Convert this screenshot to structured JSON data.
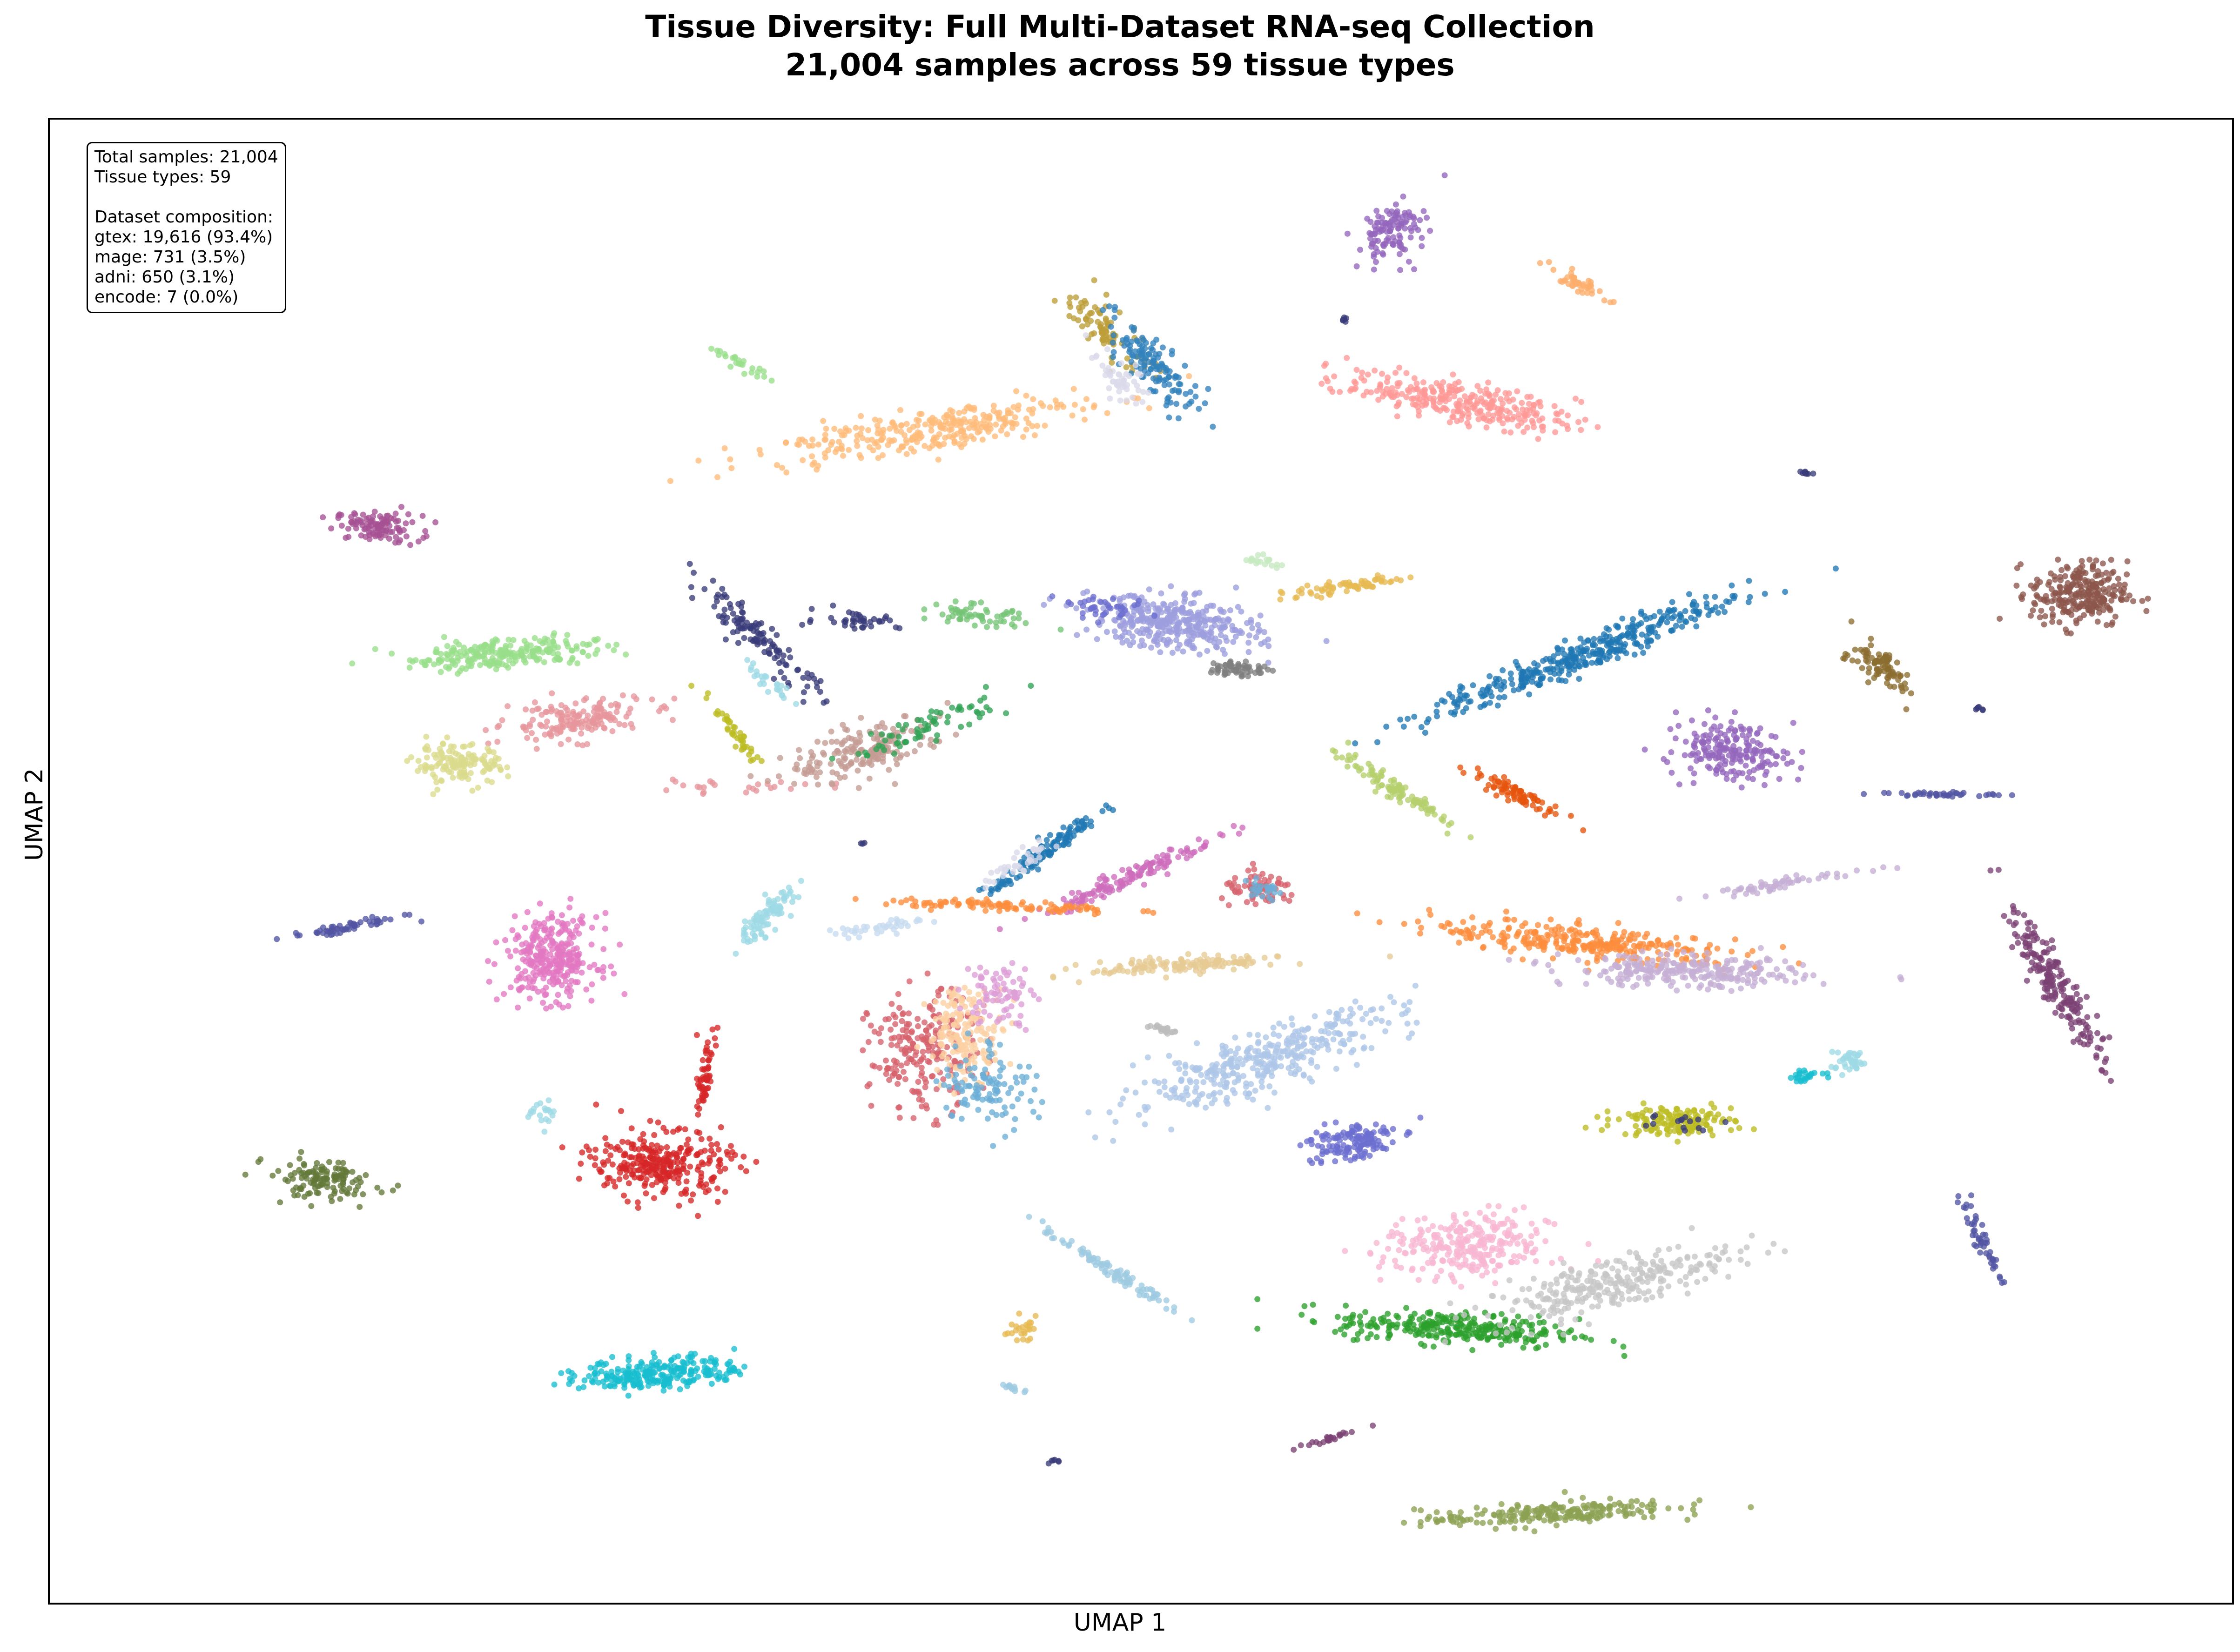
{
  "chart_data": {
    "type": "scatter",
    "title": "Tissue Diversity: Full Multi-Dataset RNA-seq Collection",
    "subtitle": "21,004 samples across 59 tissue types",
    "xlabel": "UMAP 1",
    "ylabel": "UMAP 2",
    "xlim": [
      0,
      100
    ],
    "ylim": [
      0,
      100
    ],
    "grid": false,
    "legend": "none",
    "clusters": [
      {
        "color": "#a55194",
        "x": 15.0,
        "y": 72.5,
        "sx": 1.8,
        "sy": 0.9,
        "rot": -5,
        "n": 110
      },
      {
        "color": "#98df8a",
        "x": 20.8,
        "y": 64.0,
        "sx": 3.9,
        "sy": 0.9,
        "rot": 5,
        "n": 240
      },
      {
        "color": "#e7969c",
        "x": 24.0,
        "y": 59.5,
        "sx": 3.0,
        "sy": 1.2,
        "rot": 10,
        "n": 170
      },
      {
        "color": "#dbdb8d",
        "x": 18.8,
        "y": 56.5,
        "sx": 1.9,
        "sy": 1.2,
        "rot": 0,
        "n": 140
      },
      {
        "color": "#e7969c",
        "x": 31.0,
        "y": 55.0,
        "sx": 4.5,
        "sy": 0.35,
        "rot": 0,
        "n": 25
      },
      {
        "color": "#393b79",
        "x": 32.5,
        "y": 65.0,
        "sx": 4.5,
        "sy": 0.7,
        "rot": -55,
        "n": 120
      },
      {
        "color": "#bcbd22",
        "x": 31.5,
        "y": 58.5,
        "sx": 3.0,
        "sy": 0.3,
        "rot": -62,
        "n": 45
      },
      {
        "color": "#9edae5",
        "x": 33.0,
        "y": 62.0,
        "sx": 2.0,
        "sy": 0.4,
        "rot": -50,
        "n": 25
      },
      {
        "color": "#393b79",
        "x": 37.0,
        "y": 66.3,
        "sx": 1.8,
        "sy": 0.6,
        "rot": 0,
        "n": 40
      },
      {
        "color": "#c49c94",
        "x": 37.5,
        "y": 57.5,
        "sx": 3.4,
        "sy": 1.4,
        "rot": 25,
        "n": 190
      },
      {
        "color": "#31a354",
        "x": 40.0,
        "y": 59.0,
        "sx": 3.8,
        "sy": 0.8,
        "rot": 30,
        "n": 70
      },
      {
        "color": "#74c476",
        "x": 42.5,
        "y": 66.5,
        "sx": 2.0,
        "sy": 0.7,
        "rot": -15,
        "n": 60
      },
      {
        "color": "#9c9ede",
        "x": 51.5,
        "y": 66.0,
        "sx": 3.6,
        "sy": 1.6,
        "rot": -10,
        "n": 360
      },
      {
        "color": "#7f7f7f",
        "x": 54.5,
        "y": 63.0,
        "sx": 1.3,
        "sy": 0.5,
        "rot": 0,
        "n": 60
      },
      {
        "color": "#6b6ecf",
        "x": 48.5,
        "y": 67.0,
        "sx": 1.6,
        "sy": 0.6,
        "rot": -10,
        "n": 40
      },
      {
        "color": "#e7ba52",
        "x": 59.5,
        "y": 68.5,
        "sx": 3.0,
        "sy": 0.35,
        "rot": 12,
        "n": 70
      },
      {
        "color": "#c7e9c0",
        "x": 55.5,
        "y": 70.3,
        "sx": 0.9,
        "sy": 0.3,
        "rot": -20,
        "n": 20
      },
      {
        "color": "#ffbb78",
        "x": 40.0,
        "y": 79.0,
        "sx": 7.0,
        "sy": 1.3,
        "rot": 13,
        "n": 300
      },
      {
        "color": "#98df8a",
        "x": 31.7,
        "y": 83.5,
        "sx": 1.5,
        "sy": 0.3,
        "rot": -40,
        "n": 25
      },
      {
        "color": "#bd9e39",
        "x": 48.5,
        "y": 85.5,
        "sx": 2.6,
        "sy": 0.9,
        "rot": -55,
        "n": 90
      },
      {
        "color": "#3182bd",
        "x": 50.5,
        "y": 83.5,
        "sx": 3.3,
        "sy": 1.0,
        "rot": -62,
        "n": 130
      },
      {
        "color": "#dadaeb",
        "x": 49.0,
        "y": 82.5,
        "sx": 2.0,
        "sy": 0.8,
        "rot": -60,
        "n": 50
      },
      {
        "color": "#9467bd",
        "x": 61.5,
        "y": 92.5,
        "sx": 1.3,
        "sy": 1.8,
        "rot": -15,
        "n": 120
      },
      {
        "color": "#fdae6b",
        "x": 70.0,
        "y": 89.0,
        "sx": 1.4,
        "sy": 0.4,
        "rot": -40,
        "n": 45
      },
      {
        "color": "#393b79",
        "x": 59.3,
        "y": 86.5,
        "sx": 0.3,
        "sy": 0.15,
        "rot": 0,
        "n": 6
      },
      {
        "color": "#ff9896",
        "x": 64.5,
        "y": 81.0,
        "sx": 4.9,
        "sy": 1.2,
        "rot": -15,
        "n": 290
      },
      {
        "color": "#393b79",
        "x": 80.5,
        "y": 76.2,
        "sx": 0.4,
        "sy": 0.15,
        "rot": -35,
        "n": 8
      },
      {
        "color": "#1f77b4",
        "x": 70.5,
        "y": 64.0,
        "sx": 7.6,
        "sy": 0.95,
        "rot": 30,
        "n": 380
      },
      {
        "color": "#8c564b",
        "x": 93.0,
        "y": 68.0,
        "sx": 2.0,
        "sy": 2.0,
        "rot": 0,
        "n": 260
      },
      {
        "color": "#8c6d31",
        "x": 84.0,
        "y": 63.0,
        "sx": 1.8,
        "sy": 0.8,
        "rot": -50,
        "n": 90
      },
      {
        "color": "#393b79",
        "x": 88.5,
        "y": 60.3,
        "sx": 0.3,
        "sy": 0.15,
        "rot": -30,
        "n": 6
      },
      {
        "color": "#9467bd",
        "x": 77.0,
        "y": 57.5,
        "sx": 2.4,
        "sy": 1.8,
        "rot": -20,
        "n": 200
      },
      {
        "color": "#5254a3",
        "x": 86.5,
        "y": 54.5,
        "sx": 2.5,
        "sy": 0.15,
        "rot": 0,
        "n": 40
      },
      {
        "color": "#b5cf6b",
        "x": 61.5,
        "y": 55.0,
        "sx": 3.2,
        "sy": 0.45,
        "rot": -42,
        "n": 100
      },
      {
        "color": "#e6550d",
        "x": 67.0,
        "y": 54.7,
        "sx": 2.3,
        "sy": 0.5,
        "rot": -35,
        "n": 80
      },
      {
        "color": "#1f77b4",
        "x": 45.5,
        "y": 50.5,
        "sx": 3.3,
        "sy": 0.45,
        "rot": 48,
        "n": 130
      },
      {
        "color": "#dadaeb",
        "x": 44.5,
        "y": 50.0,
        "sx": 2.0,
        "sy": 0.5,
        "rot": 45,
        "n": 40
      },
      {
        "color": "#393b79",
        "x": 37.2,
        "y": 51.2,
        "sx": 0.15,
        "sy": 0.15,
        "rot": 0,
        "n": 3
      },
      {
        "color": "#ce6dbd",
        "x": 49.5,
        "y": 49.0,
        "sx": 4.3,
        "sy": 0.5,
        "rot": 33,
        "n": 140
      },
      {
        "color": "#fd8d3c",
        "x": 43.5,
        "y": 47.0,
        "sx": 5.0,
        "sy": 0.35,
        "rot": -3,
        "n": 100
      },
      {
        "color": "#c6dbef",
        "x": 38.0,
        "y": 45.5,
        "sx": 2.0,
        "sy": 0.35,
        "rot": 15,
        "n": 40
      },
      {
        "color": "#9edae5",
        "x": 33.0,
        "y": 46.5,
        "sx": 2.0,
        "sy": 0.6,
        "rot": 55,
        "n": 90
      },
      {
        "color": "#d6616b",
        "x": 55.5,
        "y": 48.0,
        "sx": 1.6,
        "sy": 1.0,
        "rot": 0,
        "n": 70
      },
      {
        "color": "#6baed6",
        "x": 55.5,
        "y": 48.0,
        "sx": 1.0,
        "sy": 0.6,
        "rot": 0,
        "n": 25
      },
      {
        "color": "#e377c2",
        "x": 23.0,
        "y": 43.5,
        "sx": 1.9,
        "sy": 2.6,
        "rot": 0,
        "n": 300
      },
      {
        "color": "#5254a3",
        "x": 13.5,
        "y": 45.5,
        "sx": 2.5,
        "sy": 0.3,
        "rot": 15,
        "n": 60
      },
      {
        "color": "#e7cb94",
        "x": 52.0,
        "y": 43.0,
        "sx": 4.0,
        "sy": 0.5,
        "rot": 5,
        "n": 140
      },
      {
        "color": "#d6616b",
        "x": 40.0,
        "y": 37.0,
        "sx": 2.2,
        "sy": 3.6,
        "rot": 0,
        "n": 220
      },
      {
        "color": "#fdd0a2",
        "x": 42.0,
        "y": 38.5,
        "sx": 1.6,
        "sy": 2.8,
        "rot": 0,
        "n": 170
      },
      {
        "color": "#6baed6",
        "x": 43.0,
        "y": 35.0,
        "sx": 2.0,
        "sy": 2.6,
        "rot": 0,
        "n": 110
      },
      {
        "color": "#de9ed6",
        "x": 43.5,
        "y": 41.0,
        "sx": 1.4,
        "sy": 2.0,
        "rot": 0,
        "n": 80
      },
      {
        "color": "#bdbdbd",
        "x": 51.0,
        "y": 38.7,
        "sx": 0.6,
        "sy": 0.2,
        "rot": -20,
        "n": 20
      },
      {
        "color": "#aec7e8",
        "x": 55.5,
        "y": 36.5,
        "sx": 6.5,
        "sy": 1.6,
        "rot": 28,
        "n": 380
      },
      {
        "color": "#fd8d3c",
        "x": 70.5,
        "y": 44.5,
        "sx": 6.5,
        "sy": 1.0,
        "rot": -8,
        "n": 300
      },
      {
        "color": "#c5b0d5",
        "x": 75.0,
        "y": 42.5,
        "sx": 5.0,
        "sy": 1.0,
        "rot": -3,
        "n": 260
      },
      {
        "color": "#c5b0d5",
        "x": 79.5,
        "y": 48.5,
        "sx": 4.0,
        "sy": 0.3,
        "rot": 15,
        "n": 60
      },
      {
        "color": "#7b4173",
        "x": 92.0,
        "y": 41.5,
        "sx": 5.0,
        "sy": 0.7,
        "rot": -68,
        "n": 200
      },
      {
        "color": "#9edae5",
        "x": 82.5,
        "y": 36.5,
        "sx": 0.8,
        "sy": 0.7,
        "rot": 0,
        "n": 40
      },
      {
        "color": "#17becf",
        "x": 80.5,
        "y": 35.5,
        "sx": 1.0,
        "sy": 0.3,
        "rot": 10,
        "n": 25
      },
      {
        "color": "#bcbd22",
        "x": 74.5,
        "y": 32.5,
        "sx": 2.4,
        "sy": 0.9,
        "rot": 0,
        "n": 150
      },
      {
        "color": "#393b79",
        "x": 74.5,
        "y": 32.5,
        "sx": 2.0,
        "sy": 0.6,
        "rot": 0,
        "n": 15
      },
      {
        "color": "#6b6ecf",
        "x": 59.5,
        "y": 31.0,
        "sx": 2.0,
        "sy": 1.2,
        "rot": 15,
        "n": 140
      },
      {
        "color": "#9edae5",
        "x": 22.5,
        "y": 33.0,
        "sx": 0.5,
        "sy": 0.9,
        "rot": 0,
        "n": 20
      },
      {
        "color": "#d62728",
        "x": 28.0,
        "y": 29.5,
        "sx": 2.8,
        "sy": 2.0,
        "rot": -10,
        "n": 300
      },
      {
        "color": "#d62728",
        "x": 30.0,
        "y": 35.5,
        "sx": 2.6,
        "sy": 0.25,
        "rot": 85,
        "n": 60
      },
      {
        "color": "#637939",
        "x": 12.5,
        "y": 28.5,
        "sx": 2.3,
        "sy": 1.2,
        "rot": -10,
        "n": 130
      },
      {
        "color": "#9ecae1",
        "x": 48.5,
        "y": 22.5,
        "sx": 3.8,
        "sy": 0.3,
        "rot": -42,
        "n": 90
      },
      {
        "color": "#e7ba52",
        "x": 44.5,
        "y": 18.5,
        "sx": 0.6,
        "sy": 0.7,
        "rot": 0,
        "n": 25
      },
      {
        "color": "#9ecae1",
        "x": 44.0,
        "y": 14.5,
        "sx": 0.6,
        "sy": 0.2,
        "rot": -20,
        "n": 12
      },
      {
        "color": "#17becf",
        "x": 28.0,
        "y": 15.5,
        "sx": 3.3,
        "sy": 1.0,
        "rot": 5,
        "n": 250
      },
      {
        "color": "#f7b6d2",
        "x": 65.0,
        "y": 24.0,
        "sx": 3.5,
        "sy": 2.0,
        "rot": 5,
        "n": 280
      },
      {
        "color": "#2ca02c",
        "x": 64.5,
        "y": 18.5,
        "sx": 5.0,
        "sy": 1.0,
        "rot": -5,
        "n": 300
      },
      {
        "color": "#c7c7c7",
        "x": 71.5,
        "y": 21.5,
        "sx": 5.5,
        "sy": 1.5,
        "rot": 20,
        "n": 280
      },
      {
        "color": "#5254a3",
        "x": 88.5,
        "y": 24.5,
        "sx": 2.7,
        "sy": 0.3,
        "rot": -70,
        "n": 50
      },
      {
        "color": "#393b79",
        "x": 46.0,
        "y": 9.5,
        "sx": 0.3,
        "sy": 0.15,
        "rot": 0,
        "n": 6
      },
      {
        "color": "#7b4173",
        "x": 58.5,
        "y": 11.0,
        "sx": 1.5,
        "sy": 0.2,
        "rot": 25,
        "n": 25
      },
      {
        "color": "#8ca252",
        "x": 68.5,
        "y": 6.0,
        "sx": 5.2,
        "sy": 0.7,
        "rot": 5,
        "n": 220
      }
    ]
  },
  "stats_box": {
    "total_samples": "Total samples: 21,004",
    "tissue_types": "Tissue types: 59",
    "composition_header": "Dataset composition:",
    "gtex": "gtex: 19,616 (93.4%)",
    "mage": "mage: 731 (3.5%)",
    "adni": "adni: 650 (3.1%)",
    "encode": "encode: 7 (0.0%)"
  }
}
